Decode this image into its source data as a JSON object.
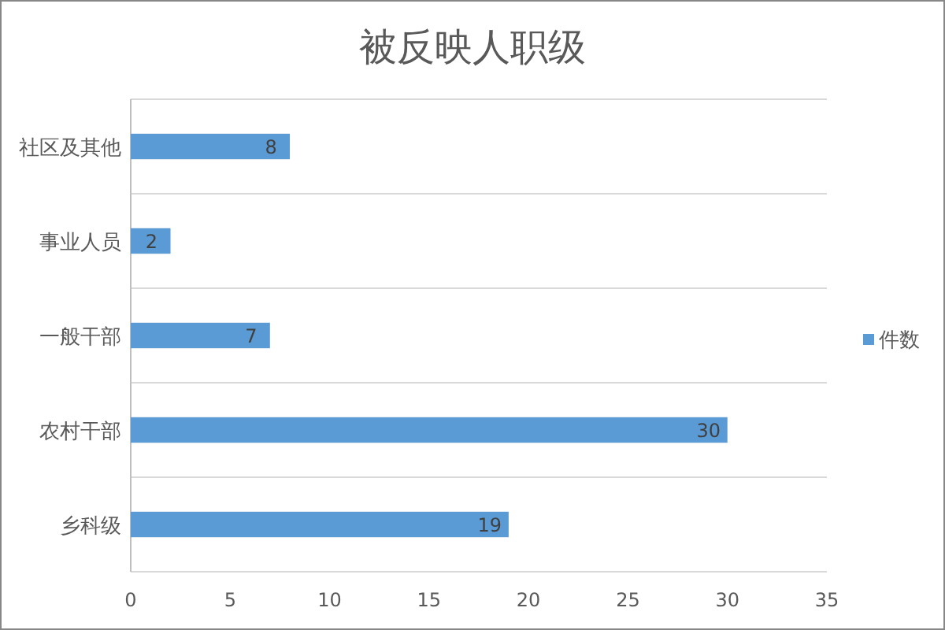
{
  "chart_data": {
    "type": "bar",
    "orientation": "horizontal",
    "title": "被反映人职级",
    "categories": [
      "社区及其他",
      "事业人员",
      "一般干部",
      "农村干部",
      "乡科级"
    ],
    "series": [
      {
        "name": "件数",
        "color": "#5b9bd5",
        "values": [
          8,
          2,
          7,
          30,
          19
        ]
      }
    ],
    "xlim": [
      0,
      35
    ],
    "xticks": [
      0,
      5,
      10,
      15,
      20,
      25,
      30,
      35
    ],
    "grid": "y",
    "legend": "right",
    "data_labels": true
  }
}
